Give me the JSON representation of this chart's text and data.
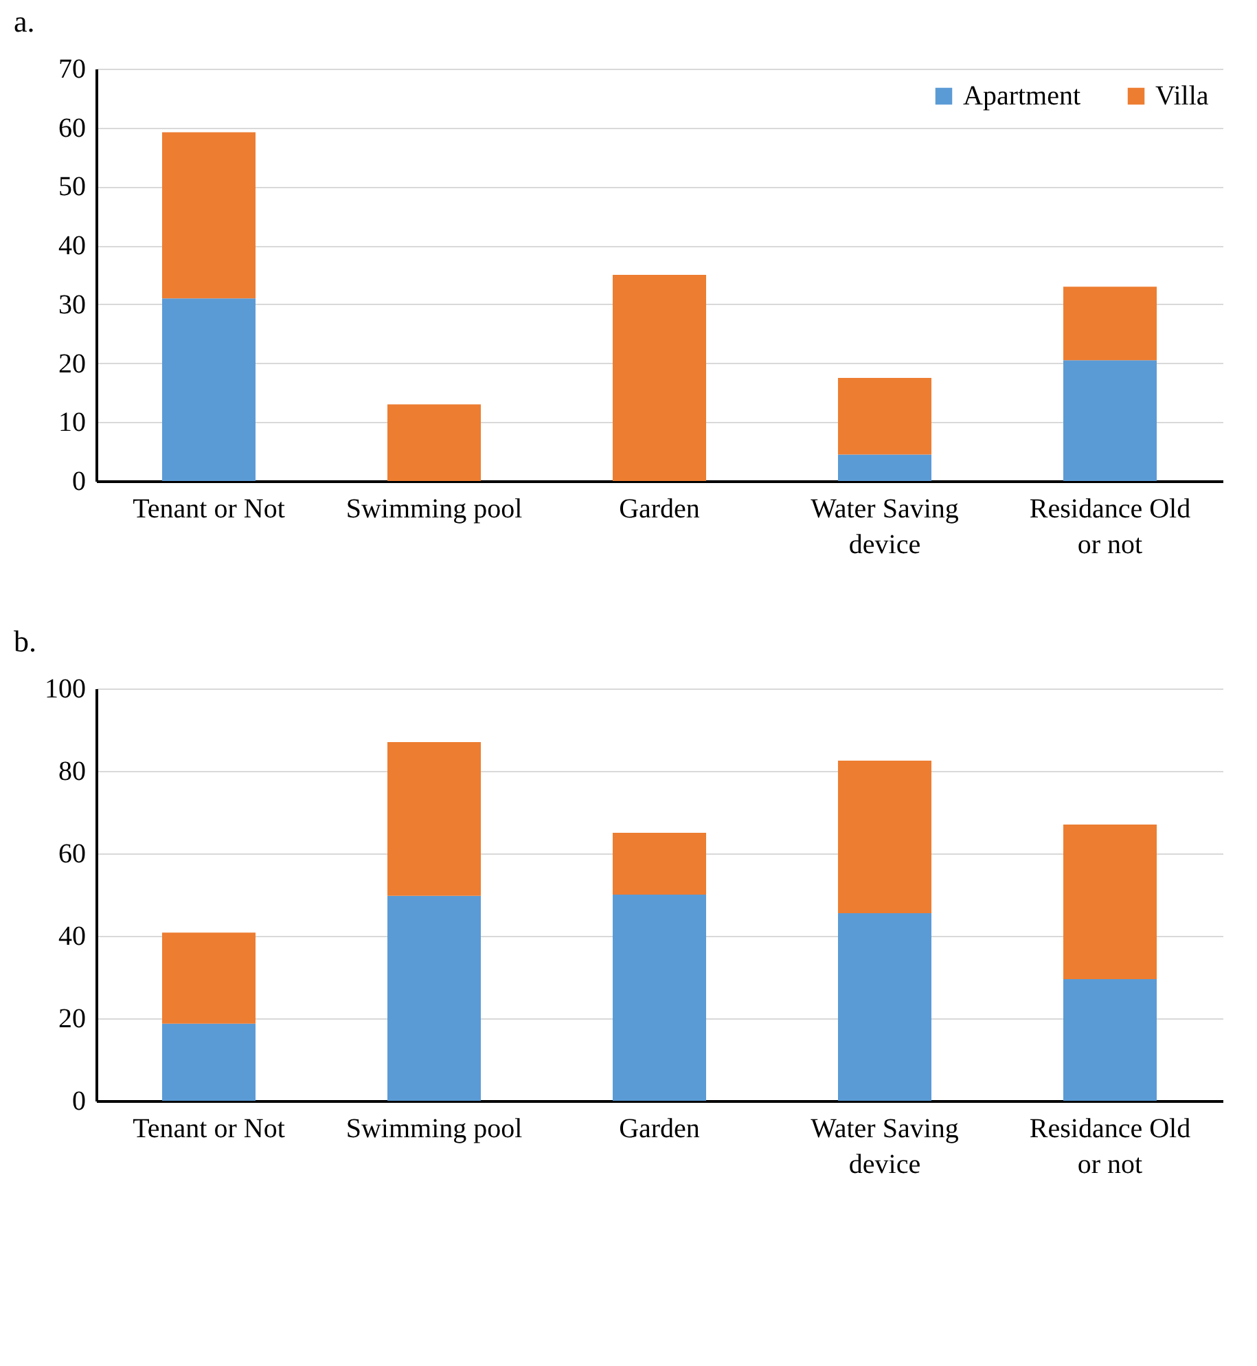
{
  "chart_data": [
    {
      "type": "bar",
      "title": "a.",
      "stacked": true,
      "categories": [
        "Tenant  or Not",
        "Swimming pool",
        "Garden",
        "Water Saving device",
        "Residance Old or not"
      ],
      "series": [
        {
          "name": "Apartment",
          "color": "#5b9bd5",
          "values": [
            31,
            0,
            0,
            4.5,
            20.5
          ]
        },
        {
          "name": "Villa",
          "color": "#ed7d31",
          "values": [
            28.2,
            13,
            35,
            13,
            12.5
          ]
        }
      ],
      "ylim": [
        0,
        70
      ],
      "yticks": [
        0,
        10,
        20,
        30,
        40,
        50,
        60,
        70
      ],
      "grid": "y",
      "legend": "top right"
    },
    {
      "type": "bar",
      "title": "b.",
      "stacked": true,
      "categories": [
        "Tenant  or Not",
        "Swimming pool",
        "Garden",
        "Water Saving device",
        "Residance Old or not"
      ],
      "series": [
        {
          "name": "Apartment",
          "color": "#5b9bd5",
          "values": [
            18.7,
            49.7,
            50,
            45.5,
            29.5
          ]
        },
        {
          "name": "Villa",
          "color": "#ed7d31",
          "values": [
            22.1,
            37.3,
            15,
            37,
            37.5
          ]
        }
      ],
      "ylim": [
        0,
        100
      ],
      "yticks": [
        0,
        20,
        40,
        60,
        80,
        100
      ],
      "grid": "y",
      "legend": "top right"
    }
  ]
}
